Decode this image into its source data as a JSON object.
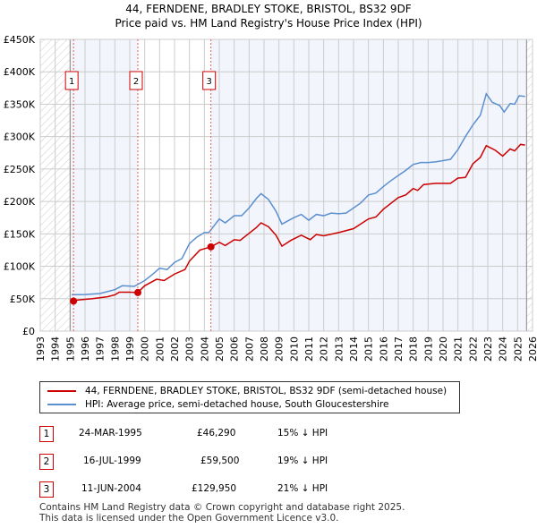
{
  "chart_data": {
    "type": "line",
    "title": "44, FERNDENE, BRADLEY STOKE, BRISTOL, BS32 9DF",
    "subtitle": "Price paid vs. HM Land Registry's House Price Index (HPI)",
    "xlim": [
      1993,
      2026
    ],
    "ylim": [
      0,
      450000
    ],
    "x_ticks": [
      "1993",
      "1994",
      "1995",
      "1996",
      "1997",
      "1998",
      "1999",
      "2000",
      "2001",
      "2002",
      "2003",
      "2004",
      "2005",
      "2006",
      "2007",
      "2008",
      "2009",
      "2010",
      "2011",
      "2012",
      "2013",
      "2014",
      "2015",
      "2016",
      "2017",
      "2018",
      "2019",
      "2020",
      "2021",
      "2022",
      "2023",
      "2024",
      "2025",
      "2026"
    ],
    "y_ticks": [
      {
        "v": 0,
        "label": "£0"
      },
      {
        "v": 50000,
        "label": "£50K"
      },
      {
        "v": 100000,
        "label": "£100K"
      },
      {
        "v": 150000,
        "label": "£150K"
      },
      {
        "v": 200000,
        "label": "£200K"
      },
      {
        "v": 250000,
        "label": "£250K"
      },
      {
        "v": 300000,
        "label": "£300K"
      },
      {
        "v": 350000,
        "label": "£350K"
      },
      {
        "v": 400000,
        "label": "£400K"
      },
      {
        "v": 450000,
        "label": "£450K"
      }
    ],
    "grid": true,
    "data_range": [
      1995,
      2025.6
    ],
    "series": [
      {
        "name": "44, FERNDENE, BRADLEY STOKE, BRISTOL, BS32 9DF (semi-detached house)",
        "color": "#cc0000",
        "points": [
          [
            1995.23,
            46290
          ],
          [
            1995.5,
            48000
          ],
          [
            1996.5,
            50000
          ],
          [
            1997.5,
            53000
          ],
          [
            1998,
            56000
          ],
          [
            1998.3,
            60000
          ],
          [
            1999,
            60000
          ],
          [
            1999.54,
            59500
          ],
          [
            2000,
            70000
          ],
          [
            2000.8,
            80000
          ],
          [
            2001.3,
            78000
          ],
          [
            2002,
            88000
          ],
          [
            2002.7,
            95000
          ],
          [
            2003,
            108000
          ],
          [
            2003.7,
            125000
          ],
          [
            2004.44,
            129950
          ],
          [
            2005,
            137000
          ],
          [
            2005.4,
            132000
          ],
          [
            2006,
            141000
          ],
          [
            2006.4,
            140000
          ],
          [
            2007.5,
            160000
          ],
          [
            2007.8,
            167000
          ],
          [
            2008.3,
            161000
          ],
          [
            2008.8,
            148000
          ],
          [
            2009.2,
            131000
          ],
          [
            2009.8,
            140000
          ],
          [
            2010.5,
            148000
          ],
          [
            2011.1,
            141000
          ],
          [
            2011.5,
            149000
          ],
          [
            2012,
            147000
          ],
          [
            2013,
            152000
          ],
          [
            2014,
            158000
          ],
          [
            2015,
            173000
          ],
          [
            2015.5,
            176000
          ],
          [
            2016,
            188000
          ],
          [
            2017,
            206000
          ],
          [
            2017.5,
            210000
          ],
          [
            2018,
            220000
          ],
          [
            2018.3,
            217000
          ],
          [
            2018.7,
            226000
          ],
          [
            2019.5,
            228000
          ],
          [
            2020.5,
            228000
          ],
          [
            2021,
            236000
          ],
          [
            2021.5,
            237000
          ],
          [
            2022,
            258000
          ],
          [
            2022.5,
            268000
          ],
          [
            2022.9,
            286000
          ],
          [
            2023.5,
            279000
          ],
          [
            2024,
            270000
          ],
          [
            2024.5,
            281000
          ],
          [
            2024.8,
            278000
          ],
          [
            2025.2,
            288000
          ],
          [
            2025.5,
            287000
          ]
        ]
      },
      {
        "name": "HPI: Average price, semi-detached house, South Gloucestershire",
        "color": "#5b8fd0",
        "points": [
          [
            1995.1,
            56000
          ],
          [
            1996,
            56500
          ],
          [
            1997,
            58000
          ],
          [
            1998,
            64000
          ],
          [
            1998.5,
            70000
          ],
          [
            1999.3,
            69000
          ],
          [
            2000,
            78000
          ],
          [
            2000.5,
            87000
          ],
          [
            2001,
            97000
          ],
          [
            2001.5,
            95000
          ],
          [
            2002,
            106000
          ],
          [
            2002.5,
            112000
          ],
          [
            2003,
            135000
          ],
          [
            2003.5,
            145000
          ],
          [
            2004,
            152000
          ],
          [
            2004.3,
            152000
          ],
          [
            2005,
            173000
          ],
          [
            2005.4,
            167000
          ],
          [
            2006,
            178000
          ],
          [
            2006.5,
            178000
          ],
          [
            2007,
            190000
          ],
          [
            2007.5,
            205000
          ],
          [
            2007.8,
            212000
          ],
          [
            2008.3,
            203000
          ],
          [
            2008.8,
            185000
          ],
          [
            2009.2,
            165000
          ],
          [
            2009.6,
            170000
          ],
          [
            2010,
            175000
          ],
          [
            2010.5,
            180000
          ],
          [
            2011,
            171000
          ],
          [
            2011.5,
            180000
          ],
          [
            2012,
            178000
          ],
          [
            2012.5,
            182000
          ],
          [
            2013,
            181000
          ],
          [
            2013.5,
            182000
          ],
          [
            2014,
            190000
          ],
          [
            2014.5,
            198000
          ],
          [
            2015,
            210000
          ],
          [
            2015.5,
            213000
          ],
          [
            2016,
            223000
          ],
          [
            2016.5,
            232000
          ],
          [
            2017,
            240000
          ],
          [
            2017.5,
            248000
          ],
          [
            2018,
            257000
          ],
          [
            2018.5,
            260000
          ],
          [
            2019,
            260000
          ],
          [
            2019.5,
            261000
          ],
          [
            2020,
            263000
          ],
          [
            2020.5,
            265000
          ],
          [
            2021,
            280000
          ],
          [
            2021.5,
            300000
          ],
          [
            2022,
            318000
          ],
          [
            2022.5,
            333000
          ],
          [
            2022.9,
            366000
          ],
          [
            2023.3,
            353000
          ],
          [
            2023.8,
            348000
          ],
          [
            2024.1,
            338000
          ],
          [
            2024.5,
            351000
          ],
          [
            2024.8,
            350000
          ],
          [
            2025.1,
            363000
          ],
          [
            2025.5,
            362000
          ]
        ]
      }
    ],
    "sales": [
      {
        "id": "1",
        "x": 1995.23,
        "date": "24-MAR-1995",
        "price_value": 46290,
        "price": "£46,290",
        "hpi": "15% ↓ HPI"
      },
      {
        "id": "2",
        "x": 1999.54,
        "date": "16-JUL-1999",
        "price_value": 59500,
        "price": "£59,500",
        "hpi": "19% ↓ HPI"
      },
      {
        "id": "3",
        "x": 2004.44,
        "date": "11-JUN-2004",
        "price_value": 129950,
        "price": "£129,950",
        "hpi": "21% ↓ HPI"
      }
    ]
  },
  "footer": [
    "Contains HM Land Registry data © Crown copyright and database right 2025.",
    "This data is licensed under the Open Government Licence v3.0."
  ]
}
